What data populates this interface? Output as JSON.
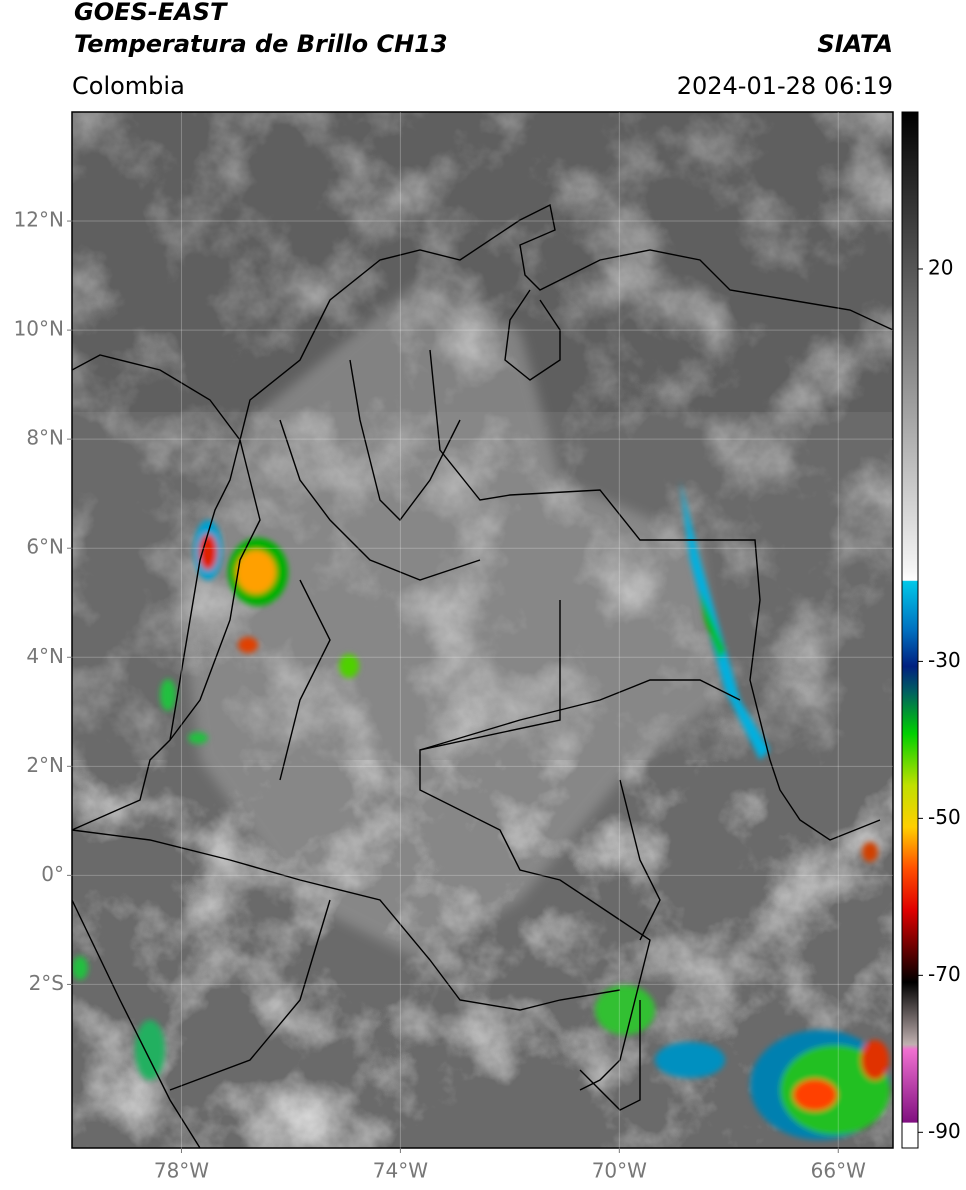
{
  "header": {
    "satellite": "GOES-EAST",
    "product": "Temperatura de Brillo CH13",
    "source": "SIATA",
    "region": "Colombia",
    "datetime": "2024-01-28 06:19"
  },
  "map": {
    "xlim": [
      -80,
      -65
    ],
    "ylim": [
      -5,
      14
    ],
    "xticks": [
      {
        "value": -78,
        "label": "78°W"
      },
      {
        "value": -74,
        "label": "74°W"
      },
      {
        "value": -70,
        "label": "70°W"
      },
      {
        "value": -66,
        "label": "66°W"
      }
    ],
    "yticks": [
      {
        "value": 12,
        "label": "12°N"
      },
      {
        "value": 10,
        "label": "10°N"
      },
      {
        "value": 8,
        "label": "8°N"
      },
      {
        "value": 6,
        "label": "6°N"
      },
      {
        "value": 4,
        "label": "4°N"
      },
      {
        "value": 2,
        "label": "2°N"
      },
      {
        "value": 0,
        "label": "0°"
      },
      {
        "value": -2,
        "label": "2°S"
      }
    ],
    "grid": true
  },
  "colorbar": {
    "lim": [
      -92,
      40
    ],
    "ticks": [
      20,
      -30,
      -50,
      -70,
      -90
    ]
  }
}
